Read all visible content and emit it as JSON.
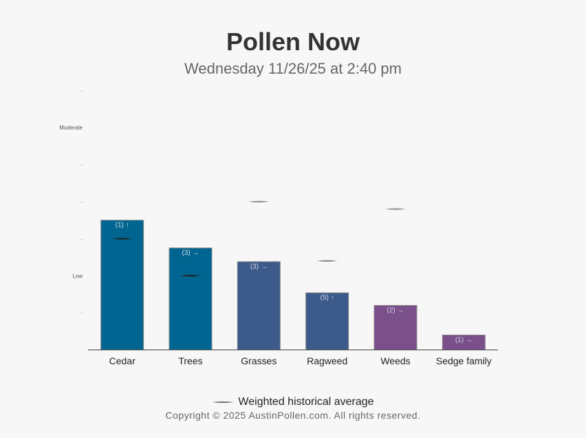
{
  "page": {
    "title": "Pollen Now",
    "subtitle": "Wednesday 11/26/25 at 2:40 pm",
    "legend_label": "Weighted historical average",
    "copyright": "Copyright © 2025 AustinPollen.com.  All rights reserved."
  },
  "chart_data": {
    "type": "bar",
    "title": "Pollen Now",
    "subtitle": "Wednesday 11/26/25 at 2:40 pm",
    "categories": [
      "Cedar",
      "Trees",
      "Grasses",
      "Ragweed",
      "Weeds",
      "Sedge family"
    ],
    "values": [
      3.5,
      2.75,
      2.38,
      1.54,
      1.2,
      0.4
    ],
    "bar_labels": [
      "(1) ↑",
      "(3) →",
      "(3) →",
      "(5) ↑",
      "(2) →",
      "(1) →"
    ],
    "historical_average": [
      3.0,
      2.0,
      4.0,
      2.4,
      3.8,
      null
    ],
    "bar_colors": [
      "#006691",
      "#006691",
      "#3c5a8a",
      "#3c5a8a",
      "#7b4f8a",
      "#7b4f8a"
    ],
    "average_marker_colors": [
      "#222222",
      "#222222",
      "#888888",
      "#888888",
      "#888888",
      "#888888"
    ],
    "y_ticks": [
      {
        "value": 1,
        "label": "-"
      },
      {
        "value": 2,
        "label": "Low"
      },
      {
        "value": 3,
        "label": "-"
      },
      {
        "value": 4,
        "label": "-"
      },
      {
        "value": 5,
        "label": "-"
      },
      {
        "value": 6,
        "label": "Moderate"
      },
      {
        "value": 7,
        "label": "-"
      }
    ],
    "ylim": [
      0,
      7
    ],
    "xlabel": "",
    "ylabel": "",
    "grid": false,
    "legend": {
      "position": "bottom",
      "entries": [
        "Weighted historical average"
      ]
    }
  }
}
